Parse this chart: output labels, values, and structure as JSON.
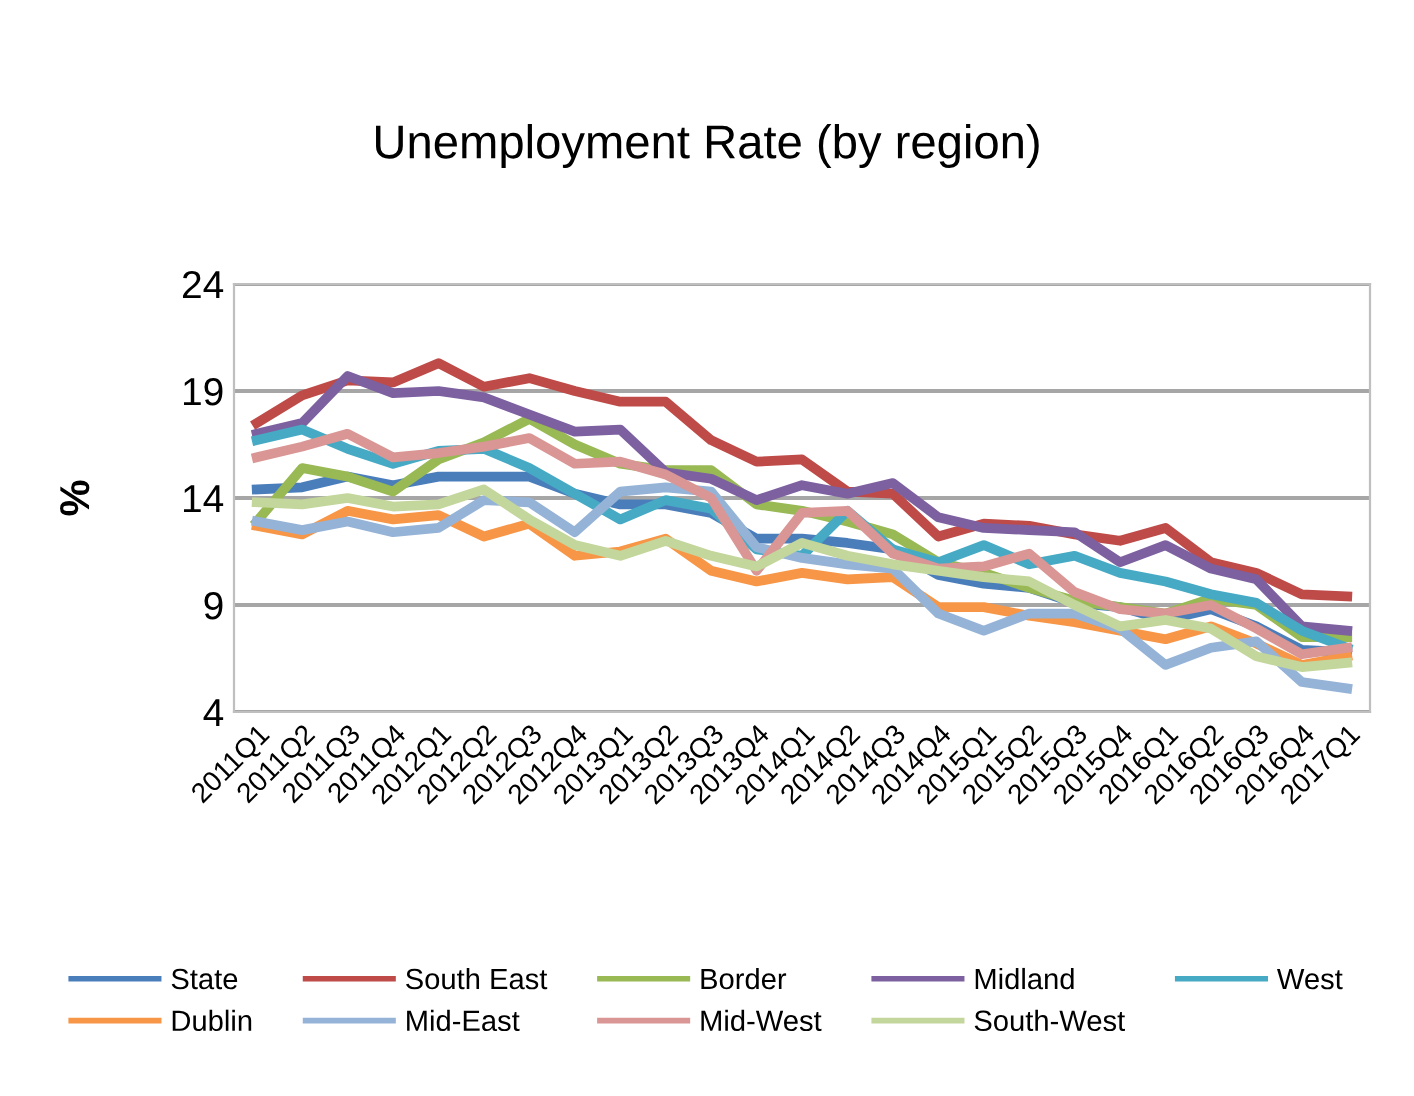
{
  "chart_data": {
    "type": "line",
    "title": "Unemployment Rate (by region)",
    "ylabel": "%",
    "categories": [
      "2011Q1",
      "2011Q2",
      "2011Q3",
      "2011Q4",
      "2012Q1",
      "2012Q2",
      "2012Q3",
      "2012Q4",
      "2013Q1",
      "2013Q2",
      "2013Q3",
      "2013Q4",
      "2014Q1",
      "2014Q2",
      "2014Q3",
      "2014Q4",
      "2015Q1",
      "2015Q2",
      "2015Q3",
      "2015Q4",
      "2016Q1",
      "2016Q2",
      "2016Q3",
      "2016Q4",
      "2017Q1"
    ],
    "ylim": [
      4,
      24
    ],
    "yticks": [
      4,
      9,
      14,
      19,
      24
    ],
    "grid": "y",
    "legend": "bottom",
    "marker": "none",
    "line_style": "solid",
    "series": [
      {
        "name": "State",
        "color": "#4a7ebb",
        "values": [
          14.4,
          14.5,
          15.0,
          14.6,
          15.0,
          15.0,
          15.0,
          14.2,
          13.7,
          13.7,
          13.3,
          12.1,
          12.1,
          11.9,
          11.6,
          10.4,
          10.0,
          9.8,
          9.1,
          8.9,
          8.3,
          8.8,
          8.0,
          6.9,
          6.8
        ]
      },
      {
        "name": "South East",
        "color": "#be4b48",
        "values": [
          17.5,
          18.8,
          19.5,
          19.4,
          20.3,
          19.2,
          19.6,
          19.0,
          18.5,
          18.5,
          16.7,
          15.7,
          15.8,
          14.3,
          14.2,
          12.2,
          12.8,
          12.7,
          12.3,
          12.0,
          12.6,
          11.0,
          10.5,
          9.5,
          9.4
        ]
      },
      {
        "name": "Border",
        "color": "#98b954",
        "values": [
          12.9,
          15.4,
          15.0,
          14.3,
          15.8,
          16.6,
          17.7,
          16.5,
          15.6,
          15.3,
          15.3,
          13.7,
          13.4,
          12.9,
          12.3,
          11.0,
          10.5,
          9.8,
          9.2,
          8.9,
          8.6,
          9.3,
          9.0,
          7.5,
          7.5
        ]
      },
      {
        "name": "Midland",
        "color": "#7d60a0",
        "values": [
          17.0,
          17.5,
          19.7,
          18.9,
          19.0,
          18.7,
          17.9,
          17.1,
          17.2,
          15.2,
          14.9,
          13.9,
          14.6,
          14.2,
          14.7,
          13.1,
          12.6,
          12.5,
          12.4,
          11.0,
          11.8,
          10.7,
          10.2,
          8.0,
          7.8
        ]
      },
      {
        "name": "West",
        "color": "#46aac5",
        "values": [
          16.7,
          17.2,
          16.3,
          15.6,
          16.2,
          16.3,
          15.4,
          14.2,
          13.0,
          13.9,
          13.5,
          11.6,
          11.3,
          13.4,
          11.6,
          11.0,
          11.8,
          10.9,
          11.3,
          10.5,
          10.1,
          9.5,
          9.1,
          7.8,
          7.0
        ]
      },
      {
        "name": "Dublin",
        "color": "#f79646",
        "values": [
          12.7,
          12.3,
          13.4,
          13.0,
          13.2,
          12.2,
          12.8,
          11.3,
          11.5,
          12.1,
          10.6,
          10.1,
          10.5,
          10.2,
          10.3,
          8.9,
          8.9,
          8.5,
          8.2,
          7.8,
          7.4,
          8.0,
          7.2,
          6.2,
          6.6
        ]
      },
      {
        "name": "Mid-East",
        "color": "#95b3d7",
        "values": [
          12.9,
          12.5,
          12.9,
          12.4,
          12.6,
          13.9,
          13.8,
          12.4,
          14.3,
          14.5,
          14.3,
          11.7,
          11.2,
          10.9,
          10.7,
          8.6,
          7.8,
          8.6,
          8.6,
          7.9,
          6.2,
          7.0,
          7.3,
          5.4,
          5.1
        ]
      },
      {
        "name": "Mid-West",
        "color": "#d99694",
        "values": [
          15.9,
          16.4,
          17.0,
          15.9,
          16.1,
          16.4,
          16.8,
          15.6,
          15.7,
          15.1,
          14.0,
          10.6,
          13.3,
          13.4,
          11.4,
          10.7,
          10.8,
          11.4,
          9.6,
          8.8,
          8.6,
          9.0,
          7.9,
          6.7,
          7.0
        ]
      },
      {
        "name": "South-West",
        "color": "#c3d69b",
        "values": [
          13.8,
          13.7,
          14.0,
          13.6,
          13.7,
          14.4,
          13.0,
          11.8,
          11.3,
          12.0,
          11.3,
          10.8,
          11.9,
          11.3,
          10.9,
          10.6,
          10.3,
          10.1,
          9.0,
          8.0,
          8.3,
          7.9,
          6.6,
          6.1,
          6.3
        ]
      }
    ]
  }
}
